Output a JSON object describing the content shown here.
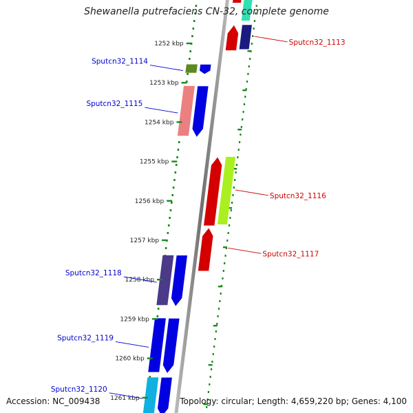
{
  "title": "Shewanella putrefaciens CN-32, complete genome",
  "footer": {
    "accession": "Accession: NC_009438",
    "summary": "Topology: circular; Length: 4,659,220 bp; Genes: 4,100"
  },
  "ruler": {
    "ticks": [
      {
        "label": "1252 kbp",
        "kbp": 1252
      },
      {
        "label": "1253 kbp",
        "kbp": 1253
      },
      {
        "label": "1254 kbp",
        "kbp": 1254
      },
      {
        "label": "1255 kbp",
        "kbp": 1255
      },
      {
        "label": "1256 kbp",
        "kbp": 1256
      },
      {
        "label": "1257 kbp",
        "kbp": 1257
      },
      {
        "label": "1258 kbp",
        "kbp": 1258
      },
      {
        "label": "1259 kbp",
        "kbp": 1259
      },
      {
        "label": "1260 kbp",
        "kbp": 1260
      },
      {
        "label": "1261 kbp",
        "kbp": 1261
      }
    ]
  },
  "genes": [
    {
      "label": "Sputcn32_1113",
      "strand": "reverse",
      "start_kbp": 1251.55,
      "end_kbp": 1252.2,
      "color": "#d40000",
      "cog_color": "#1a1a80"
    },
    {
      "label": "Sputcn32_1114",
      "strand": "forward",
      "start_kbp": 1252.55,
      "end_kbp": 1252.8,
      "color": "#0000e0",
      "cog_color": "#5c8a1e"
    },
    {
      "label": "Sputcn32_1115",
      "strand": "forward",
      "start_kbp": 1253.1,
      "end_kbp": 1254.4,
      "color": "#0000e0",
      "cog_color": "#ec8080"
    },
    {
      "label": "Sputcn32_1116",
      "strand": "reverse",
      "start_kbp": 1254.9,
      "end_kbp": 1256.65,
      "color": "#d40000",
      "cog_color": "#aaf020"
    },
    {
      "label": "Sputcn32_1117",
      "strand": "reverse",
      "start_kbp": 1256.7,
      "end_kbp": 1257.8,
      "color": "#d40000",
      "cog_color": null
    },
    {
      "label": "Sputcn32_1118",
      "strand": "forward",
      "start_kbp": 1257.4,
      "end_kbp": 1258.7,
      "color": "#0000e0",
      "cog_color": "#4a3a88"
    },
    {
      "label": "Sputcn32_1119",
      "strand": "forward",
      "start_kbp": 1259.0,
      "end_kbp": 1260.4,
      "color": "#0000e0",
      "cog_color": "#0000e0"
    },
    {
      "label": "Sputcn32_1120",
      "strand": "forward",
      "start_kbp": 1260.5,
      "end_kbp": 1261.5,
      "color": "#0000e0",
      "cog_color": "#10b0e0"
    }
  ],
  "partial_top": {
    "color": "#d40000",
    "cog_color": "#33e0b0"
  },
  "colors": {
    "forward_label": "#0000cc",
    "reverse_label": "#cc0000",
    "backbone": "#888888",
    "dots": "#1a8a1a"
  }
}
